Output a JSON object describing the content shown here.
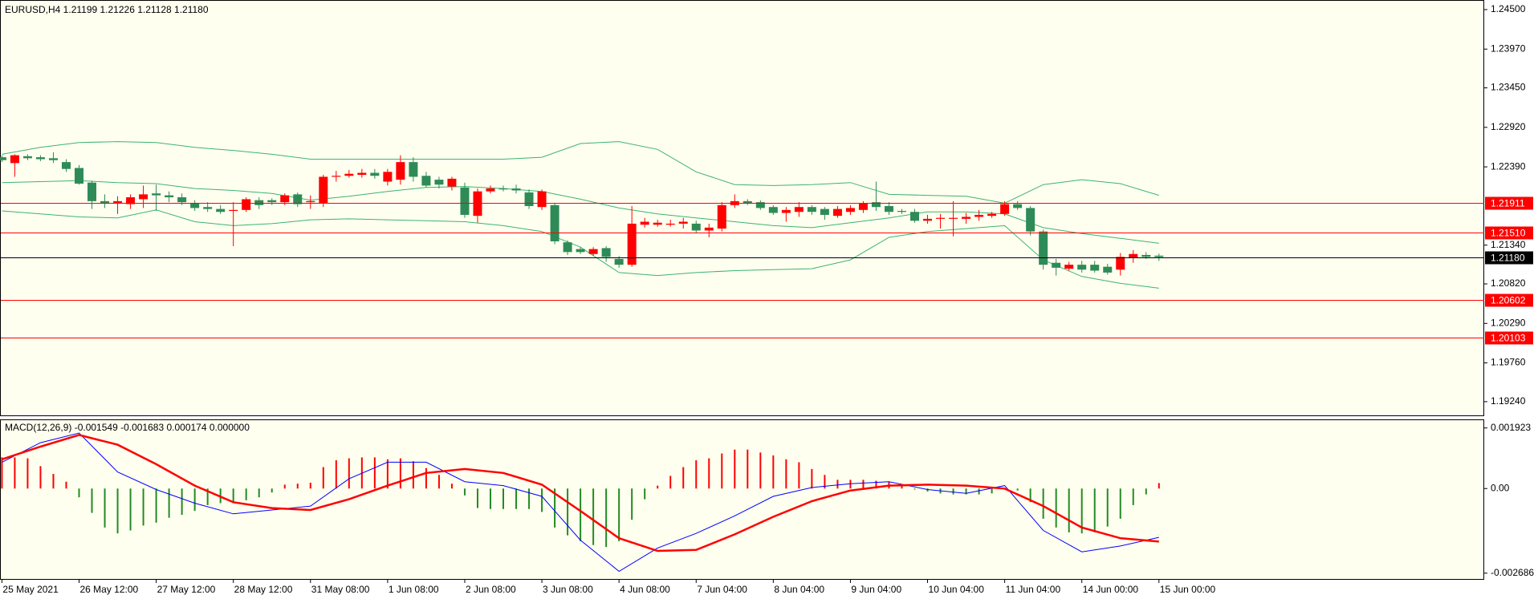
{
  "chart_data": [
    {
      "type": "candlestick",
      "title": "EURUSD,H4  1.21199 1.21226 1.21128 1.21180",
      "open": [
        1.22519,
        1.22441,
        1.22533,
        1.22519,
        1.22506,
        1.22454,
        1.22375,
        1.22179,
        1.2193,
        1.21903,
        1.2189,
        1.21956,
        1.22034,
        1.22008,
        1.21982,
        1.21903,
        1.21851,
        1.21825,
        1.21799,
        1.21812,
        1.21943,
        1.21943,
        1.21916,
        1.22021,
        1.21916,
        1.21903,
        1.22257,
        1.2227,
        1.22283,
        1.2231,
        1.22192,
        1.22218,
        1.22454,
        1.2227,
        1.22218,
        1.22126,
        1.22113,
        1.21733,
        1.22061,
        1.221,
        1.221,
        1.22047,
        1.21851,
        1.21877,
        1.21378,
        1.21287,
        1.21221,
        1.213,
        1.21155,
        1.21077,
        1.21614,
        1.21614,
        1.21614,
        1.21628,
        1.21628,
        1.21536,
        1.21562,
        1.21877,
        1.2193,
        1.21916,
        1.21851,
        1.21772,
        1.21786,
        1.21851,
        1.21825,
        1.21733,
        1.21786,
        1.21812,
        1.21916,
        1.21864,
        1.21799,
        1.21786,
        1.21667,
        1.21693,
        1.21693,
        1.21693,
        1.21719,
        1.21733,
        1.21759,
        1.2189,
        1.21838,
        1.21523,
        1.21103,
        1.21024,
        1.21077,
        1.21077,
        1.2105,
        1.21011,
        1.21168,
        1.21208,
        1.21199
      ],
      "high": [
        1.22546,
        1.22559,
        1.22559,
        1.22546,
        1.22585,
        1.22493,
        1.22415,
        1.22205,
        1.22021,
        1.21995,
        1.22021,
        1.22139,
        1.22152,
        1.22061,
        1.22034,
        1.21943,
        1.21916,
        1.21877,
        1.21916,
        1.21982,
        1.21982,
        1.21969,
        1.22034,
        1.22047,
        1.22008,
        1.22283,
        1.22336,
        1.22349,
        1.22362,
        1.22362,
        1.22362,
        1.22546,
        1.22519,
        1.22323,
        1.22257,
        1.22257,
        1.22179,
        1.221,
        1.22139,
        1.22139,
        1.22152,
        1.22087,
        1.22087,
        1.21903,
        1.21404,
        1.21313,
        1.21313,
        1.21326,
        1.21195,
        1.21864,
        1.21706,
        1.2168,
        1.2168,
        1.21706,
        1.21667,
        1.21628,
        1.21916,
        1.22021,
        1.21956,
        1.21943,
        1.21877,
        1.21851,
        1.21916,
        1.21877,
        1.21851,
        1.21864,
        1.21877,
        1.2193,
        1.22192,
        1.21916,
        1.21825,
        1.21825,
        1.21746,
        1.21759,
        1.2193,
        1.21772,
        1.21812,
        1.21786,
        1.2193,
        1.2193,
        1.21864,
        1.21549,
        1.21155,
        1.21116,
        1.21129,
        1.21129,
        1.2109,
        1.21234,
        1.21273,
        1.21247,
        1.21226
      ],
      "low": [
        1.22454,
        1.22257,
        1.2248,
        1.22467,
        1.22441,
        1.22323,
        1.22152,
        1.21825,
        1.21838,
        1.21759,
        1.21825,
        1.21838,
        1.21799,
        1.21916,
        1.21877,
        1.21799,
        1.21786,
        1.21759,
        1.21326,
        1.21786,
        1.21825,
        1.21877,
        1.21877,
        1.21851,
        1.21825,
        1.21851,
        1.22192,
        1.22244,
        1.22244,
        1.22231,
        1.22139,
        1.22152,
        1.22192,
        1.22113,
        1.221,
        1.22074,
        1.21706,
        1.21641,
        1.22034,
        1.22061,
        1.22034,
        1.21825,
        1.21812,
        1.21352,
        1.21208,
        1.21221,
        1.21195,
        1.21116,
        1.21037,
        1.2105,
        1.21575,
        1.21588,
        1.21588,
        1.21562,
        1.21509,
        1.21444,
        1.21523,
        1.21838,
        1.21877,
        1.21812,
        1.21746,
        1.21654,
        1.21719,
        1.21746,
        1.2168,
        1.21706,
        1.21746,
        1.21772,
        1.21799,
        1.21746,
        1.21759,
        1.21641,
        1.21628,
        1.21562,
        1.21457,
        1.21628,
        1.21667,
        1.21706,
        1.21733,
        1.21812,
        1.2147,
        1.21011,
        1.20932,
        1.20998,
        1.20972,
        1.20972,
        1.20945,
        1.20932,
        1.21103,
        1.21155,
        1.21128
      ],
      "close": [
        1.2248,
        1.22546,
        1.22506,
        1.22493,
        1.2248,
        1.22362,
        1.22165,
        1.2193,
        1.21903,
        1.2193,
        1.21982,
        1.22021,
        1.22008,
        1.21982,
        1.21916,
        1.21838,
        1.21825,
        1.21786,
        1.21812,
        1.21956,
        1.21877,
        1.21916,
        1.22008,
        1.2189,
        1.2193,
        1.22257,
        1.2227,
        1.22297,
        1.2231,
        1.2227,
        1.22323,
        1.22454,
        1.22257,
        1.22139,
        1.22152,
        1.22231,
        1.21746,
        1.22061,
        1.221,
        1.22087,
        1.22074,
        1.21864,
        1.22061,
        1.21391,
        1.21247,
        1.21247,
        1.21287,
        1.21182,
        1.21077,
        1.21628,
        1.21654,
        1.21641,
        1.21628,
        1.21654,
        1.21536,
        1.21575,
        1.21877,
        1.2193,
        1.21903,
        1.21838,
        1.21772,
        1.21812,
        1.21851,
        1.21786,
        1.21746,
        1.21825,
        1.21838,
        1.21903,
        1.21851,
        1.21786,
        1.21786,
        1.21667,
        1.21693,
        1.21706,
        1.21706,
        1.21719,
        1.21746,
        1.21759,
        1.2189,
        1.21838,
        1.21523,
        1.21077,
        1.21037,
        1.21077,
        1.21011,
        1.20998,
        1.20972,
        1.21182,
        1.21221,
        1.21182,
        1.2118
      ],
      "up_color": "#ff0000",
      "down_color": "#2e8b57",
      "overlay_x": [
        0,
        3,
        6,
        9,
        12,
        15,
        18,
        21,
        24,
        27,
        30,
        33,
        36,
        39,
        42,
        45,
        48,
        51,
        54,
        57,
        60,
        63,
        66,
        69,
        72,
        75,
        78,
        81,
        84,
        87,
        90
      ],
      "overlays": [
        {
          "color": "#3cb371",
          "values": [
            1.22559,
            1.22651,
            1.22716,
            1.22729,
            1.22716,
            1.22651,
            1.22611,
            1.22559,
            1.22493,
            1.22493,
            1.22493,
            1.22493,
            1.22493,
            1.22493,
            1.22519,
            1.22703,
            1.22729,
            1.22625,
            1.22323,
            1.22152,
            1.22139,
            1.22152,
            1.22179,
            1.22021,
            1.22008,
            1.21995,
            1.21903,
            1.22152,
            1.22218,
            1.22165,
            1.22008
          ]
        },
        {
          "color": "#3cb371",
          "values": [
            1.22179,
            1.22192,
            1.22205,
            1.22179,
            1.22165,
            1.221,
            1.22074,
            1.22034,
            1.21943,
            1.21995,
            1.22061,
            1.22113,
            1.22126,
            1.221,
            1.22061,
            1.21956,
            1.21838,
            1.21759,
            1.21706,
            1.21654,
            1.21601,
            1.21575,
            1.21641,
            1.21706,
            1.21786,
            1.21786,
            1.21759,
            1.21575,
            1.21496,
            1.21431,
            1.21365
          ]
        },
        {
          "color": "#3cb371",
          "values": [
            1.21799,
            1.21759,
            1.21719,
            1.21706,
            1.21812,
            1.21654,
            1.21601,
            1.21628,
            1.2168,
            1.21693,
            1.2168,
            1.21667,
            1.21654,
            1.21601,
            1.21523,
            1.21313,
            1.20972,
            1.20932,
            1.20972,
            1.20998,
            1.21011,
            1.21024,
            1.21142,
            1.21444,
            1.21523,
            1.21562,
            1.21601,
            1.21142,
            1.20919,
            1.20827,
            1.20762
          ]
        }
      ],
      "levels": [
        1.21911,
        {
          "value": 1.2151,
          "label": "1.21510"
        },
        {
          "value": 1.2118,
          "label": "1.21180"
        },
        1.20602,
        1.20103
      ],
      "level_colors": [
        "#ff0000",
        "#ff0000",
        "#000000",
        "#ff0000",
        "#ff0000"
      ],
      "xlim": [
        -0.15,
        115.3
      ],
      "ylim": [
        1.19056,
        1.24618
      ],
      "yticks": [
        {
          "value": 1.245,
          "label": "1.24500"
        },
        {
          "value": 1.2397,
          "label": "1.23970"
        },
        {
          "value": 1.2345,
          "label": "1.23450"
        },
        {
          "value": 1.2292,
          "label": "1.22920"
        },
        {
          "value": 1.2239,
          "label": "1.22390"
        },
        {
          "value": 1.2134,
          "label": "1.21340"
        },
        {
          "value": 1.2082,
          "label": "1.20820"
        },
        {
          "value": 1.2029,
          "label": "1.20290"
        },
        {
          "value": 1.1976,
          "label": "1.19760"
        },
        {
          "value": 1.1924,
          "label": "1.19240"
        }
      ],
      "background": "#fffff0"
    },
    {
      "type": "macd",
      "title": "MACD(12,26,9) -0.001549 -0.001683 0.000174 0.000000",
      "values": [
        0.00099,
        0.00099,
        0.000959,
        0.000711,
        0.000464,
        0.000217,
        -0.000278,
        -0.000773,
        -0.001237,
        -0.001423,
        -0.00133,
        -0.001175,
        -0.001083,
        -0.000928,
        -0.000835,
        -0.000711,
        -0.000526,
        -0.000464,
        -0.000464,
        -0.000371,
        -0.000278,
        -0.000124,
        0.000124,
        0.000155,
        0.000186,
        0.00068,
        0.000897,
        0.000959,
        0.00099,
        0.00099,
        0.000928,
        0.000959,
        0.000866,
        0.00065,
        0.000433,
        0.000155,
        -0.000217,
        -0.000619,
        -0.00065,
        -0.00065,
        -0.00065,
        -0.00065,
        -0.000742,
        -0.001237,
        -0.001485,
        -0.00167,
        -0.001794,
        -0.001856,
        -0.00167,
        -0.00099,
        -0.00034,
        9.3e-05,
        0.000402,
        0.00068,
        0.000897,
        0.000959,
        0.001113,
        0.001237,
        0.001237,
        0.001144,
        0.001052,
        0.000928,
        0.000835,
        0.000619,
        0.000433,
        0.000278,
        0.000278,
        0.000278,
        0.000247,
        0.000217,
        9.3e-05,
        -3.1e-05,
        -9.3e-05,
        -0.000155,
        -0.000186,
        -0.000186,
        -0.000186,
        -0.000155,
        1e-05,
        -6.2e-05,
        -0.000433,
        -0.000959,
        -0.001237,
        -0.001392,
        -0.001423,
        -0.001392,
        -0.001206,
        -0.000959,
        -0.000526,
        -0.000186,
        0.000174
      ],
      "up_color": "#ff0000",
      "down_color": "#228b22",
      "line_x": [
        0,
        3,
        6,
        9,
        12,
        15,
        18,
        21,
        24,
        27,
        30,
        33,
        36,
        39,
        42,
        45,
        48,
        51,
        54,
        57,
        60,
        63,
        66,
        69,
        72,
        75,
        78,
        81,
        84,
        87,
        90
      ],
      "series": [
        {
          "color": "#0000ff",
          "values": [
            0.000835,
            0.001454,
            0.001763,
            0.000526,
            -3.1e-05,
            -0.000464,
            -0.000804,
            -0.00068,
            -0.000557,
            0.000309,
            0.000835,
            0.000835,
            0.000217,
            9.3e-05,
            -0.000247,
            -0.001639,
            -0.002629,
            -0.001887,
            -0.001423,
            -0.000866,
            -0.000247,
            3.1e-05,
            0.000155,
            0.000217,
            -3.1e-05,
            -0.000155,
            9.3e-05,
            -0.00133,
            -0.00201,
            -0.001825,
            -0.001549
          ]
        },
        {
          "color": "#ff0000",
          "values": [
            0.000928,
            0.00133,
            0.001701,
            0.001392,
            0.000773,
            9.3e-05,
            -0.000433,
            -0.000619,
            -0.00068,
            -0.00034,
            9.3e-05,
            0.000495,
            0.000619,
            0.000495,
            0.000124,
            -0.000711,
            -0.001577,
            -0.001979,
            -0.001949,
            -0.001454,
            -0.000897,
            -0.000402,
            -6.2e-05,
            9.3e-05,
            0.000124,
            9.3e-05,
            0,
            -0.000557,
            -0.001237,
            -0.001577,
            -0.001683
          ]
        }
      ],
      "xlim": [
        -0.15,
        115.3
      ],
      "ylim": [
        -0.00287,
        0.00217
      ],
      "yticks": [
        0.001923,
        {
          "value": 0,
          "label": "0.00"
        },
        -0.002686
      ],
      "xticks": [
        {
          "value": 0,
          "label": "25 May 2021"
        },
        {
          "value": 6,
          "label": "26 May 12:00"
        },
        {
          "value": 12,
          "label": "27 May 12:00"
        },
        {
          "value": 18,
          "label": "28 May 12:00"
        },
        {
          "value": 24,
          "label": "31 May 08:00"
        },
        {
          "value": 30,
          "label": "1 Jun 08:00"
        },
        {
          "value": 36,
          "label": "2 Jun 08:00"
        },
        {
          "value": 42,
          "label": "3 Jun 08:00"
        },
        {
          "value": 48,
          "label": "4 Jun 08:00"
        },
        {
          "value": 54,
          "label": "7 Jun 04:00"
        },
        {
          "value": 60,
          "label": "8 Jun 04:00"
        },
        {
          "value": 66,
          "label": "9 Jun 04:00"
        },
        {
          "value": 72,
          "label": "10 Jun 04:00"
        },
        {
          "value": 78,
          "label": "11 Jun 04:00"
        },
        {
          "value": 84,
          "label": "14 Jun 00:00"
        },
        {
          "value": 90,
          "label": "15 Jun 00:00"
        }
      ],
      "background": "#fffff0"
    }
  ]
}
